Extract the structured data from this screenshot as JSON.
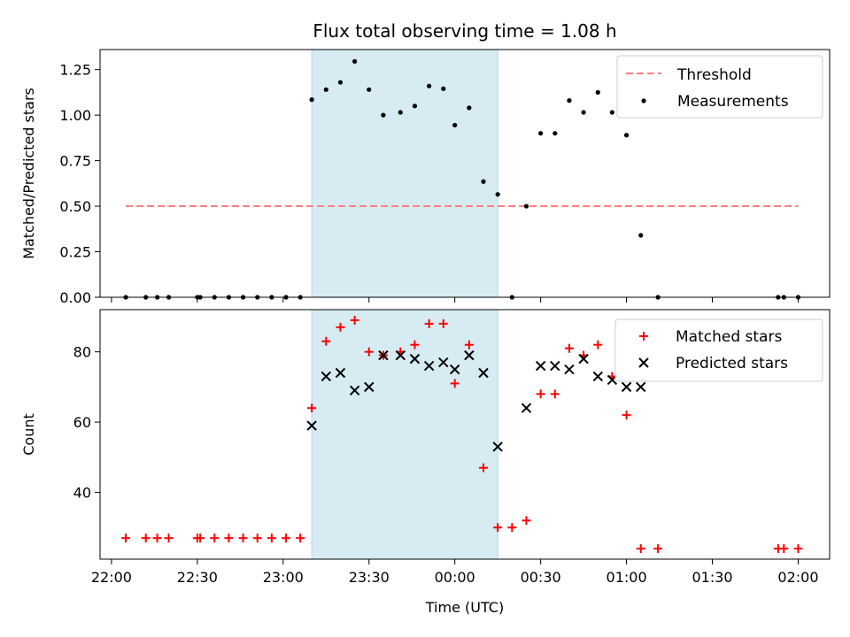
{
  "chart_data": {
    "type": "scatter",
    "title": "Flux total observing time = 1.08 h",
    "xlabel": "Time (UTC)",
    "x_ticks": [
      "22:00",
      "22:30",
      "23:00",
      "23:30",
      "00:00",
      "00:30",
      "01:00",
      "01:30",
      "02:00"
    ],
    "x_range": [
      "21:56",
      "02:11"
    ],
    "highlight_span": [
      "23:10",
      "00:15"
    ],
    "grid": false,
    "panels": [
      {
        "ylabel": "Matched/Predicted stars",
        "ylim": [
          0,
          1.36
        ],
        "y_ticks": [
          "0.00",
          "0.25",
          "0.50",
          "0.75",
          "1.00",
          "1.25"
        ],
        "legend_position": "top-right",
        "threshold": {
          "name": "Threshold",
          "value": 0.5,
          "x_start": "22:05",
          "x_end": "02:00",
          "color": "#ff7f7f"
        },
        "series": [
          {
            "name": "Measurements",
            "color": "#000000",
            "marker": "dot",
            "points": [
              [
                "22:05",
                0
              ],
              [
                "22:12",
                0
              ],
              [
                "22:16",
                0
              ],
              [
                "22:20",
                0
              ],
              [
                "22:30",
                0
              ],
              [
                "22:31",
                0
              ],
              [
                "22:36",
                0
              ],
              [
                "22:41",
                0
              ],
              [
                "22:46",
                0
              ],
              [
                "22:51",
                0
              ],
              [
                "22:56",
                0
              ],
              [
                "23:01",
                0
              ],
              [
                "23:06",
                0
              ],
              [
                "23:10",
                1.085
              ],
              [
                "23:15",
                1.14
              ],
              [
                "23:20",
                1.18
              ],
              [
                "23:25",
                1.295
              ],
              [
                "23:30",
                1.14
              ],
              [
                "23:35",
                1.0
              ],
              [
                "23:41",
                1.015
              ],
              [
                "23:46",
                1.05
              ],
              [
                "23:51",
                1.16
              ],
              [
                "23:56",
                1.145
              ],
              [
                "00:00",
                0.945
              ],
              [
                "00:05",
                1.04
              ],
              [
                "00:10",
                0.635
              ],
              [
                "00:15",
                0.565
              ],
              [
                "00:20",
                0
              ],
              [
                "00:25",
                0.5
              ],
              [
                "00:30",
                0.9
              ],
              [
                "00:35",
                0.9
              ],
              [
                "00:40",
                1.08
              ],
              [
                "00:45",
                1.015
              ],
              [
                "00:50",
                1.125
              ],
              [
                "00:55",
                1.015
              ],
              [
                "01:00",
                0.89
              ],
              [
                "01:05",
                0.34
              ],
              [
                "01:11",
                0
              ],
              [
                "01:53",
                0
              ],
              [
                "01:55",
                0
              ],
              [
                "02:00",
                0
              ]
            ]
          }
        ]
      },
      {
        "ylabel": "Count",
        "ylim": [
          21,
          92
        ],
        "y_ticks": [
          "40",
          "60",
          "80"
        ],
        "legend_position": "top-right",
        "series": [
          {
            "name": "Matched stars",
            "color": "#ff0000",
            "marker": "plus",
            "points": [
              [
                "22:05",
                27
              ],
              [
                "22:12",
                27
              ],
              [
                "22:16",
                27
              ],
              [
                "22:20",
                27
              ],
              [
                "22:30",
                27
              ],
              [
                "22:31",
                27
              ],
              [
                "22:36",
                27
              ],
              [
                "22:41",
                27
              ],
              [
                "22:46",
                27
              ],
              [
                "22:51",
                27
              ],
              [
                "22:56",
                27
              ],
              [
                "23:01",
                27
              ],
              [
                "23:06",
                27
              ],
              [
                "23:10",
                64
              ],
              [
                "23:15",
                83
              ],
              [
                "23:20",
                87
              ],
              [
                "23:25",
                89
              ],
              [
                "23:30",
                80
              ],
              [
                "23:35",
                79
              ],
              [
                "23:41",
                80
              ],
              [
                "23:46",
                82
              ],
              [
                "23:51",
                88
              ],
              [
                "23:56",
                88
              ],
              [
                "00:00",
                71
              ],
              [
                "00:05",
                82
              ],
              [
                "00:10",
                47
              ],
              [
                "00:15",
                30
              ],
              [
                "00:20",
                30
              ],
              [
                "00:25",
                32
              ],
              [
                "00:30",
                68
              ],
              [
                "00:35",
                68
              ],
              [
                "00:40",
                81
              ],
              [
                "00:45",
                79
              ],
              [
                "00:50",
                82
              ],
              [
                "00:55",
                73
              ],
              [
                "01:00",
                62
              ],
              [
                "01:05",
                24
              ],
              [
                "01:11",
                24
              ],
              [
                "01:53",
                24
              ],
              [
                "01:55",
                24
              ],
              [
                "02:00",
                24
              ]
            ]
          },
          {
            "name": "Predicted stars",
            "color": "#000000",
            "marker": "x",
            "points": [
              [
                "23:10",
                59
              ],
              [
                "23:15",
                73
              ],
              [
                "23:20",
                74
              ],
              [
                "23:25",
                69
              ],
              [
                "23:30",
                70
              ],
              [
                "23:35",
                79
              ],
              [
                "23:41",
                79
              ],
              [
                "23:46",
                78
              ],
              [
                "23:51",
                76
              ],
              [
                "23:56",
                77
              ],
              [
                "00:00",
                75
              ],
              [
                "00:05",
                79
              ],
              [
                "00:10",
                74
              ],
              [
                "00:15",
                53
              ],
              [
                "00:25",
                64
              ],
              [
                "00:30",
                76
              ],
              [
                "00:35",
                76
              ],
              [
                "00:40",
                75
              ],
              [
                "00:45",
                78
              ],
              [
                "00:50",
                73
              ],
              [
                "00:55",
                72
              ],
              [
                "01:00",
                70
              ],
              [
                "01:05",
                70
              ]
            ]
          }
        ]
      }
    ]
  }
}
